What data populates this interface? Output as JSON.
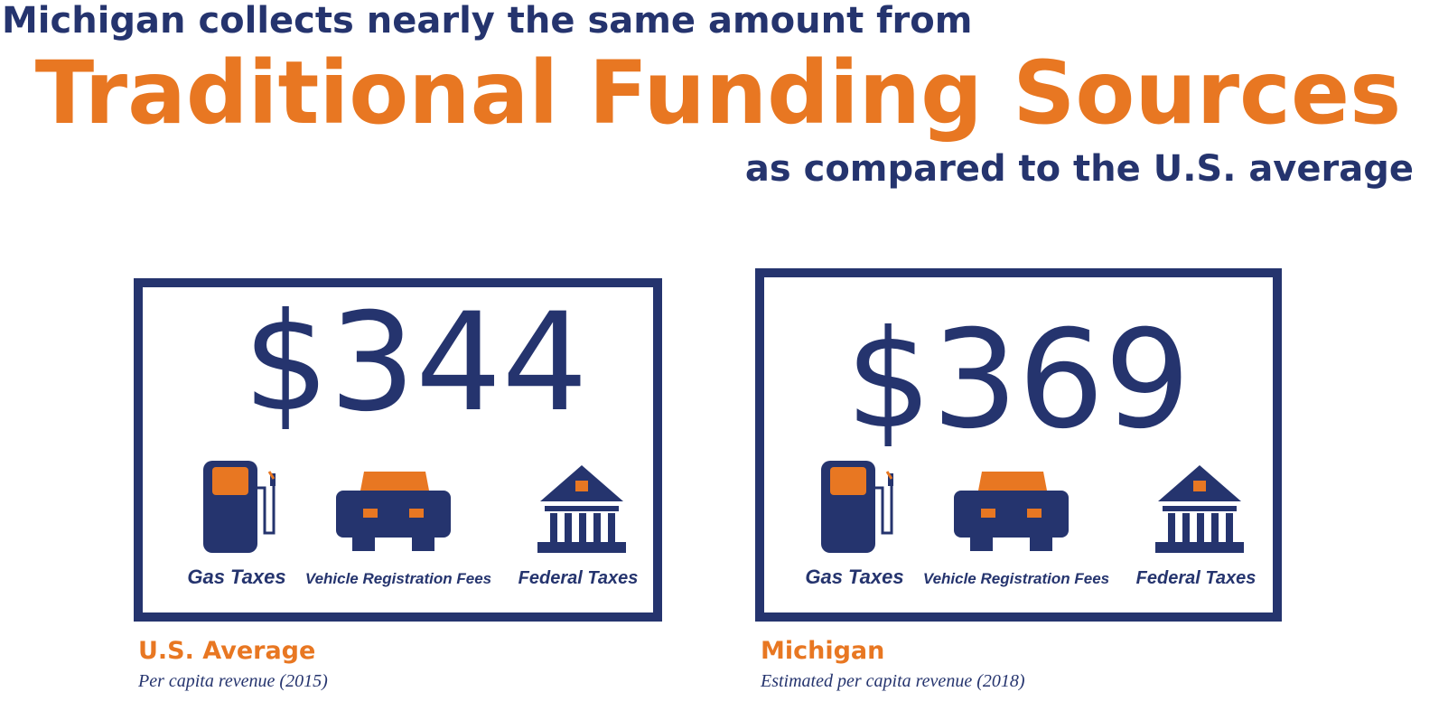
{
  "header": {
    "line1": "Michigan collects nearly the same amount from",
    "line2": "Traditional Funding Sources",
    "line3": "as compared to the U.S. average"
  },
  "panels": [
    {
      "amount": "$344",
      "labels": [
        "Gas Taxes",
        "Vehicle Registration Fees",
        "Federal Taxes"
      ],
      "name": "U.S. Average",
      "note": "Per capita revenue (2015)"
    },
    {
      "amount": "$369",
      "labels": [
        "Gas Taxes",
        "Vehicle Registration Fees",
        "Federal Taxes"
      ],
      "name": "Michigan",
      "note": "Estimated per capita revenue (2018)"
    }
  ]
}
